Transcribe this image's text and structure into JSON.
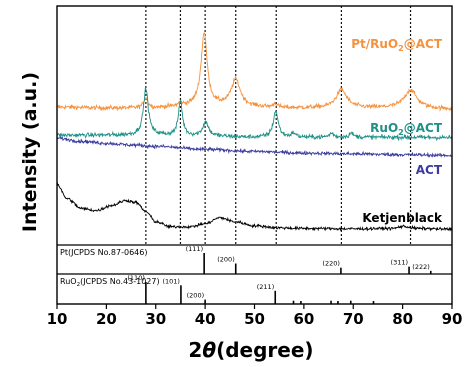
{
  "chart_data": {
    "type": "line",
    "xlabel": "2θ(degree)",
    "xlabel_prefix": "2",
    "xlabel_theta": "θ",
    "xlabel_suffix": "(degree)",
    "ylabel": "Intensity (a.u.)",
    "xlim": [
      10,
      90
    ],
    "x_ticks": [
      10,
      20,
      30,
      40,
      50,
      60,
      70,
      80,
      90
    ],
    "grid": false,
    "vertical_guides": [
      28.0,
      35.0,
      40.0,
      46.2,
      54.4,
      67.6,
      81.6
    ],
    "series": [
      {
        "name": "Pt/RuO2@ACT",
        "label_main": "Pt/RuO",
        "label_sub": "2",
        "label_tail": "@ACT",
        "color": "#f5923e",
        "baseline": 2.16,
        "points": [
          [
            10,
            0.55
          ],
          [
            20,
            0.5
          ],
          [
            28,
            0.5
          ],
          [
            38,
            0.6
          ],
          [
            45,
            0.6
          ],
          [
            50,
            0.55
          ],
          [
            56,
            0.5
          ],
          [
            64,
            0.5
          ],
          [
            72,
            0.5
          ],
          [
            80,
            0.5
          ],
          [
            90,
            0.45
          ]
        ],
        "peaks": [
          [
            28.0,
            0.5,
            0.5
          ],
          [
            35.0,
            0.15,
            0.4
          ],
          [
            39.8,
            3.6,
            0.75
          ],
          [
            46.2,
            1.3,
            1.1
          ],
          [
            54.2,
            0.2,
            0.5
          ],
          [
            67.6,
            0.9,
            1.3
          ],
          [
            81.6,
            0.9,
            1.5
          ]
        ]
      },
      {
        "name": "RuO2@ACT",
        "label_main": "RuO",
        "label_sub": "2",
        "label_tail": "@ACT",
        "color": "#1e9088",
        "baseline": 1.02,
        "points": [
          [
            10,
            0.3
          ],
          [
            20,
            0.3
          ],
          [
            30,
            0.3
          ],
          [
            40,
            0.25
          ],
          [
            50,
            0.2
          ],
          [
            60,
            0.2
          ],
          [
            70,
            0.2
          ],
          [
            80,
            0.2
          ],
          [
            90,
            0.18
          ]
        ],
        "peaks": [
          [
            28.0,
            2.3,
            0.6
          ],
          [
            35.0,
            1.7,
            0.5
          ],
          [
            40.1,
            0.7,
            0.7
          ],
          [
            54.3,
            1.3,
            0.6
          ],
          [
            57.9,
            0.2,
            0.5
          ],
          [
            65.6,
            0.2,
            0.5
          ],
          [
            69.6,
            0.2,
            0.5
          ]
        ]
      },
      {
        "name": "ACT",
        "label_main": "ACT",
        "label_sub": "",
        "label_tail": "",
        "color": "#3a3aa0",
        "baseline": 0.02,
        "points": [
          [
            10,
            1.15
          ],
          [
            15,
            1.0
          ],
          [
            20,
            0.9
          ],
          [
            25,
            0.82
          ],
          [
            30,
            0.75
          ],
          [
            40,
            0.6
          ],
          [
            50,
            0.5
          ],
          [
            60,
            0.42
          ],
          [
            70,
            0.38
          ],
          [
            80,
            0.34
          ],
          [
            90,
            0.3
          ]
        ],
        "peaks": []
      },
      {
        "name": "Ketjenblack",
        "label_main": "Ketjenblack",
        "label_sub": "",
        "label_tail": "",
        "color": "#000000",
        "baseline": -3.4,
        "points": [
          [
            10,
            2.3
          ],
          [
            12,
            1.6
          ],
          [
            15,
            1.1
          ],
          [
            18,
            1.0
          ],
          [
            21,
            1.25
          ],
          [
            24,
            1.5
          ],
          [
            26,
            1.4
          ],
          [
            28,
            0.95
          ],
          [
            30,
            0.45
          ],
          [
            33,
            0.2
          ],
          [
            37,
            0.2
          ],
          [
            40,
            0.35
          ],
          [
            43,
            0.65
          ],
          [
            46,
            0.45
          ],
          [
            50,
            0.25
          ],
          [
            55,
            0.15
          ],
          [
            60,
            0.12
          ],
          [
            70,
            0.1
          ],
          [
            78,
            0.12
          ],
          [
            80,
            0.22
          ],
          [
            83,
            0.12
          ],
          [
            90,
            0.08
          ]
        ],
        "peaks": []
      }
    ],
    "references": [
      {
        "title": "Pt(JCPDS No.87-0646)",
        "lines": [
          {
            "x": 39.8,
            "h": 1.0,
            "label": "(111)"
          },
          {
            "x": 46.2,
            "h": 0.5,
            "label": "(200)"
          },
          {
            "x": 67.5,
            "h": 0.3,
            "label": "(220)"
          },
          {
            "x": 81.3,
            "h": 0.35,
            "label": "(311)"
          },
          {
            "x": 85.7,
            "h": 0.15,
            "label": "(222)"
          }
        ]
      },
      {
        "title": "RuO2(JCPDS No.43-1027)",
        "title_main": "RuO",
        "title_sub": "2",
        "title_tail": "(JCPDS No.43-1027)",
        "lines": [
          {
            "x": 28.0,
            "h": 1.0,
            "label": "(110)"
          },
          {
            "x": 35.1,
            "h": 0.85,
            "label": "(101)"
          },
          {
            "x": 40.0,
            "h": 0.2,
            "label": "(200)"
          },
          {
            "x": 54.2,
            "h": 0.6,
            "label": "(211)"
          },
          {
            "x": 57.9,
            "h": 0.15,
            "label": ""
          },
          {
            "x": 59.4,
            "h": 0.12,
            "label": ""
          },
          {
            "x": 65.5,
            "h": 0.15,
            "label": ""
          },
          {
            "x": 66.9,
            "h": 0.12,
            "label": ""
          },
          {
            "x": 69.5,
            "h": 0.15,
            "label": ""
          },
          {
            "x": 74.1,
            "h": 0.12,
            "label": ""
          }
        ]
      }
    ]
  }
}
